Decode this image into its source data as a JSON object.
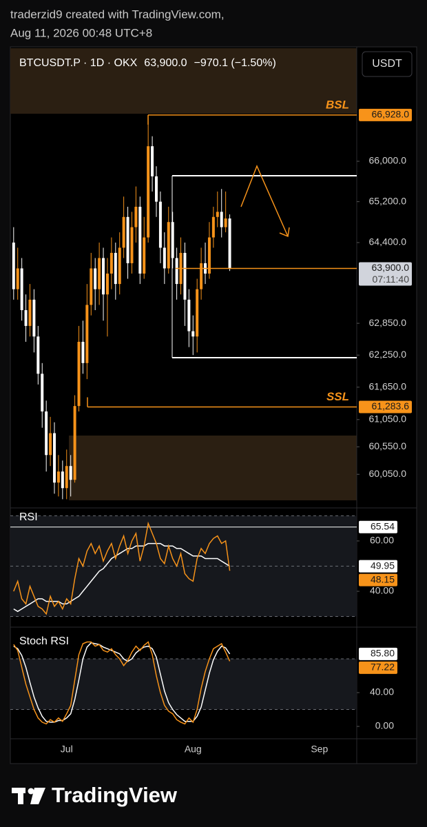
{
  "header": {
    "author_line": "traderzid9 created with TradingView.com,",
    "timestamp": "Aug 11, 2026 00:48 UTC+8"
  },
  "footer": {
    "brand": "TradingView"
  },
  "chart_data": [
    {
      "type": "candlestick",
      "symbol": "BTCUSDT.P · 1D · OKX",
      "change_label": "−970.1 (−1.50%)",
      "currency_button": "USDT",
      "log_scale": true,
      "up_color": "#f7931a",
      "down_color": "#ffffff",
      "categories": [
        null,
        null,
        null,
        null,
        null,
        null,
        null,
        null,
        null,
        null,
        null,
        null,
        null,
        "Jul",
        null,
        null,
        null,
        null,
        null,
        null,
        null,
        null,
        null,
        null,
        null,
        null,
        null,
        null,
        null,
        null,
        null,
        null,
        null,
        null,
        null,
        null,
        null,
        null,
        null,
        null,
        null,
        null,
        null,
        null,
        "Aug",
        null,
        null,
        null,
        null,
        null,
        null,
        null,
        null,
        null,
        null,
        null,
        null,
        null,
        null,
        null,
        null,
        null,
        null,
        null,
        null,
        null,
        null,
        null,
        null,
        null,
        null,
        null,
        null,
        null,
        null,
        "Sep",
        null,
        null,
        null,
        null,
        null,
        null,
        null,
        null
      ],
      "open": [
        64400,
        63500,
        63900,
        63100,
        62800,
        63300,
        62600,
        61900,
        61200,
        60400,
        60800,
        59900,
        60100,
        59800,
        60200,
        59950,
        61300,
        62500,
        62100,
        63200,
        63900,
        63500,
        64100,
        63400,
        63800,
        64200,
        63600,
        64300,
        64900,
        64000,
        64700,
        65100,
        63800,
        64500,
        66300,
        65700,
        65200,
        64300,
        63900,
        64800,
        64100,
        63600,
        64200,
        63300,
        62700,
        62600,
        63500,
        64000,
        63800,
        64500,
        64900,
        65000,
        64700,
        64870.1,
        null,
        null,
        null,
        null,
        null,
        null,
        null,
        null,
        null,
        null,
        null,
        null,
        null,
        null,
        null,
        null,
        null,
        null,
        null,
        null,
        null,
        null,
        null,
        null,
        null,
        null,
        null,
        null,
        null,
        null
      ],
      "high": [
        64700,
        64300,
        64100,
        63400,
        63600,
        63500,
        62800,
        62100,
        61400,
        61100,
        61000,
        60400,
        60300,
        60500,
        60400,
        61500,
        62800,
        62900,
        63600,
        64200,
        64100,
        64400,
        64300,
        64100,
        64500,
        64400,
        64600,
        65300,
        65100,
        65000,
        65500,
        65300,
        64900,
        66928,
        66500,
        65900,
        65400,
        64600,
        65100,
        65000,
        64300,
        64500,
        64400,
        63500,
        63000,
        63700,
        64300,
        64400,
        64800,
        65100,
        65400,
        65450,
        65400,
        64950,
        null,
        null,
        null,
        null,
        null,
        null,
        null,
        null,
        null,
        null,
        null,
        null,
        null,
        null,
        null,
        null,
        null,
        null,
        null,
        null,
        null,
        null,
        null,
        null,
        null,
        null,
        null,
        null,
        null,
        null
      ],
      "low": [
        63300,
        63300,
        62900,
        62500,
        62600,
        62300,
        61700,
        60900,
        60100,
        60200,
        59700,
        59650,
        59600,
        59600,
        59650,
        59900,
        61200,
        61900,
        61800,
        63000,
        63100,
        63200,
        62900,
        62600,
        63500,
        63300,
        63400,
        64100,
        63700,
        63800,
        64400,
        63600,
        63700,
        64400,
        65400,
        64900,
        64000,
        63600,
        63800,
        63900,
        63300,
        63400,
        62800,
        62400,
        62250,
        62300,
        63300,
        63600,
        63700,
        64300,
        64700,
        64500,
        64600,
        63850,
        null,
        null,
        null,
        null,
        null,
        null,
        null,
        null,
        null,
        null,
        null,
        null,
        null,
        null,
        null,
        null,
        null,
        null,
        null,
        null,
        null,
        null,
        null,
        null,
        null,
        null,
        null,
        null,
        null,
        null
      ],
      "close": [
        63500,
        63900,
        63100,
        62800,
        63300,
        62600,
        61900,
        61200,
        60400,
        60800,
        59900,
        60100,
        59800,
        60200,
        59950,
        61300,
        62500,
        62100,
        63200,
        63900,
        63500,
        64100,
        63400,
        63800,
        64200,
        63600,
        64300,
        64900,
        64000,
        64700,
        65100,
        63800,
        64500,
        66300,
        65700,
        65200,
        64300,
        63900,
        64800,
        64100,
        63600,
        64200,
        63300,
        62700,
        62600,
        63500,
        64000,
        63800,
        64500,
        64900,
        65000,
        64700,
        64870.1,
        63900,
        null,
        null,
        null,
        null,
        null,
        null,
        null,
        null,
        null,
        null,
        null,
        null,
        null,
        null,
        null,
        null,
        null,
        null,
        null,
        null,
        null,
        null,
        null,
        null,
        null,
        null,
        null,
        null,
        null,
        null
      ],
      "ylim": [
        59580,
        68290
      ],
      "yticks": [
        {
          "value": 66000,
          "label": "66,000.0"
        },
        {
          "value": 65200,
          "label": "65,200.0"
        },
        {
          "value": 64400,
          "label": "64,400.0"
        },
        {
          "value": 62850,
          "label": "62,850.0"
        },
        {
          "value": 62250,
          "label": "62,250.0"
        },
        {
          "value": 61650,
          "label": "61,650.0"
        },
        {
          "value": 61050,
          "label": "61,050.0"
        },
        {
          "value": 60550,
          "label": "60,550.0"
        },
        {
          "value": 60050,
          "label": "60,050.0"
        }
      ],
      "price_labels": [
        {
          "value": 66928,
          "label": "66,928.0",
          "color": "#f7931a"
        },
        {
          "value": 63900,
          "label": "63,900.0",
          "countdown": "07:11:40",
          "color": "#d1d4dc"
        },
        {
          "value": 61283.6,
          "label": "61,283.6",
          "color": "#f7931a"
        }
      ],
      "annotations": [
        {
          "text": "BSL",
          "value": 66928
        },
        {
          "text": "SSL",
          "value": 61283.6
        }
      ]
    },
    {
      "type": "line",
      "title": "RSI",
      "ylim": [
        28.5,
        72.3
      ],
      "levels": [
        70,
        50,
        30
      ],
      "yticks": [
        {
          "value": 60,
          "label": "60.00"
        },
        {
          "value": 40,
          "label": "40.00"
        }
      ],
      "reference_line": {
        "value": 65.54,
        "color": "#ffffff"
      },
      "series": [
        {
          "color": "#ffffff",
          "last_label": "49.95",
          "values": [
            33,
            32,
            33,
            34,
            35,
            36,
            37,
            37,
            36,
            36,
            36,
            36,
            35,
            35,
            36,
            37,
            38,
            40,
            42,
            44,
            46,
            48,
            49,
            51,
            53,
            54,
            55,
            56,
            57,
            57,
            58,
            58,
            58,
            59,
            59,
            59,
            59,
            58,
            58,
            58,
            57,
            57,
            56,
            55,
            54,
            54,
            54,
            53,
            53,
            53,
            53,
            52,
            51,
            49.95
          ]
        },
        {
          "color": "#f7931a",
          "last_label": "48.15",
          "values": [
            40,
            44,
            37,
            35,
            42,
            38,
            34,
            33,
            31,
            38,
            34,
            36,
            33,
            37,
            35,
            45,
            53,
            50,
            56,
            59,
            55,
            58,
            52,
            56,
            59,
            53,
            58,
            62,
            55,
            60,
            63,
            52,
            58,
            67,
            63,
            59,
            53,
            51,
            58,
            53,
            50,
            55,
            47,
            45,
            44,
            53,
            57,
            55,
            59,
            61,
            62,
            59,
            60,
            48.15
          ]
        }
      ]
    },
    {
      "type": "line",
      "title": "Stoch RSI",
      "ylim": [
        -11.4,
        109.4
      ],
      "levels": [
        80,
        20
      ],
      "yticks": [
        {
          "value": 40,
          "label": "40.00"
        },
        {
          "value": 0,
          "label": "0.00"
        }
      ],
      "series": [
        {
          "color": "#ffffff",
          "last_label": "85.80",
          "values": [
            95,
            92,
            84,
            70,
            52,
            35,
            22,
            12,
            6,
            5,
            5,
            7,
            7,
            10,
            15,
            32,
            55,
            80,
            94,
            99,
            98,
            97,
            94,
            92,
            90,
            88,
            86,
            80,
            77,
            80,
            87,
            91,
            94,
            95,
            92,
            82,
            62,
            42,
            28,
            20,
            14,
            10,
            6,
            6,
            6,
            12,
            23,
            43,
            63,
            79,
            89,
            95,
            93,
            85.8
          ]
        },
        {
          "color": "#f7931a",
          "last_label": "77.22",
          "values": [
            97,
            90,
            70,
            50,
            35,
            20,
            10,
            5,
            3,
            8,
            5,
            10,
            6,
            15,
            25,
            55,
            85,
            98,
            100,
            100,
            95,
            97,
            90,
            88,
            92,
            85,
            80,
            72,
            78,
            88,
            95,
            90,
            96,
            100,
            85,
            60,
            40,
            25,
            18,
            15,
            8,
            5,
            3,
            10,
            5,
            20,
            45,
            65,
            80,
            92,
            95,
            98,
            88,
            77.22
          ]
        }
      ]
    }
  ]
}
